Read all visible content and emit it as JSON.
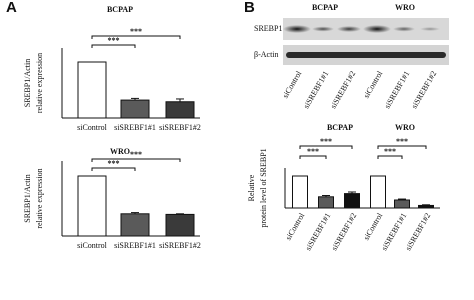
{
  "panel_labels": [
    "A",
    "B"
  ],
  "blot": {
    "groups": [
      "BCPAP",
      "WRO"
    ],
    "rows": [
      "SREBP1",
      "β-Actin"
    ],
    "lanes": [
      "siControl",
      "siSREBF1#1",
      "siSREBF1#2",
      "siControl",
      "siSREBF1#1",
      "siSREBF1#2"
    ]
  },
  "chart_data": [
    {
      "type": "bar",
      "ylabel": [
        "SREBP1/Actin",
        "relative expression"
      ],
      "ylim": [
        0,
        1.25
      ],
      "colors": [
        "#ffffff",
        "#5a5a5a",
        "#3a3a3a"
      ],
      "groups": [
        {
          "title": "BCPAP",
          "categories": [
            "siControl",
            "siSREBF1#1",
            "siSREBF1#2"
          ],
          "values": [
            1.0,
            0.32,
            0.29
          ],
          "errors": [
            0,
            0.03,
            0.05
          ],
          "brackets": [
            {
              "text": "***",
              "from": 0,
              "to": 1
            },
            {
              "text": "***",
              "from": 0,
              "to": 2
            }
          ]
        }
      ]
    },
    {
      "type": "bar",
      "ylabel": [
        "SREBP1/Actin",
        "relative expression"
      ],
      "ylim": [
        0,
        1.25
      ],
      "colors": [
        "#ffffff",
        "#5a5a5a",
        "#3a3a3a"
      ],
      "groups": [
        {
          "title": "WRO",
          "categories": [
            "siControl",
            "siSREBF1#1",
            "siSREBF1#2"
          ],
          "values": [
            1.0,
            0.37,
            0.36
          ],
          "errors": [
            0,
            0.02,
            0.01
          ],
          "brackets": [
            {
              "text": "***",
              "from": 0,
              "to": 1
            },
            {
              "text": "***",
              "from": 0,
              "to": 2
            }
          ]
        }
      ]
    },
    {
      "type": "bar",
      "ylabel": [
        "Relative",
        "protein level of SREBP1"
      ],
      "ylim": [
        0,
        1.25
      ],
      "colors": [
        "#ffffff",
        "#5a5a5a",
        "#111111"
      ],
      "groups": [
        {
          "title": "BCPAP",
          "categories": [
            "siControl",
            "siSREBF1#1",
            "siSREBF1#2"
          ],
          "values": [
            1.0,
            0.35,
            0.45
          ],
          "errors": [
            0,
            0.04,
            0.05
          ],
          "brackets": [
            {
              "text": "***",
              "from": 0,
              "to": 1
            },
            {
              "text": "***",
              "from": 0,
              "to": 2
            }
          ]
        },
        {
          "title": "WRO",
          "categories": [
            "siControl",
            "siSREBF1#1",
            "siSREBF1#2"
          ],
          "values": [
            1.0,
            0.25,
            0.08
          ],
          "errors": [
            0,
            0.03,
            0.02
          ],
          "brackets": [
            {
              "text": "***",
              "from": 0,
              "to": 1
            },
            {
              "text": "***",
              "from": 0,
              "to": 2
            }
          ]
        }
      ]
    }
  ]
}
